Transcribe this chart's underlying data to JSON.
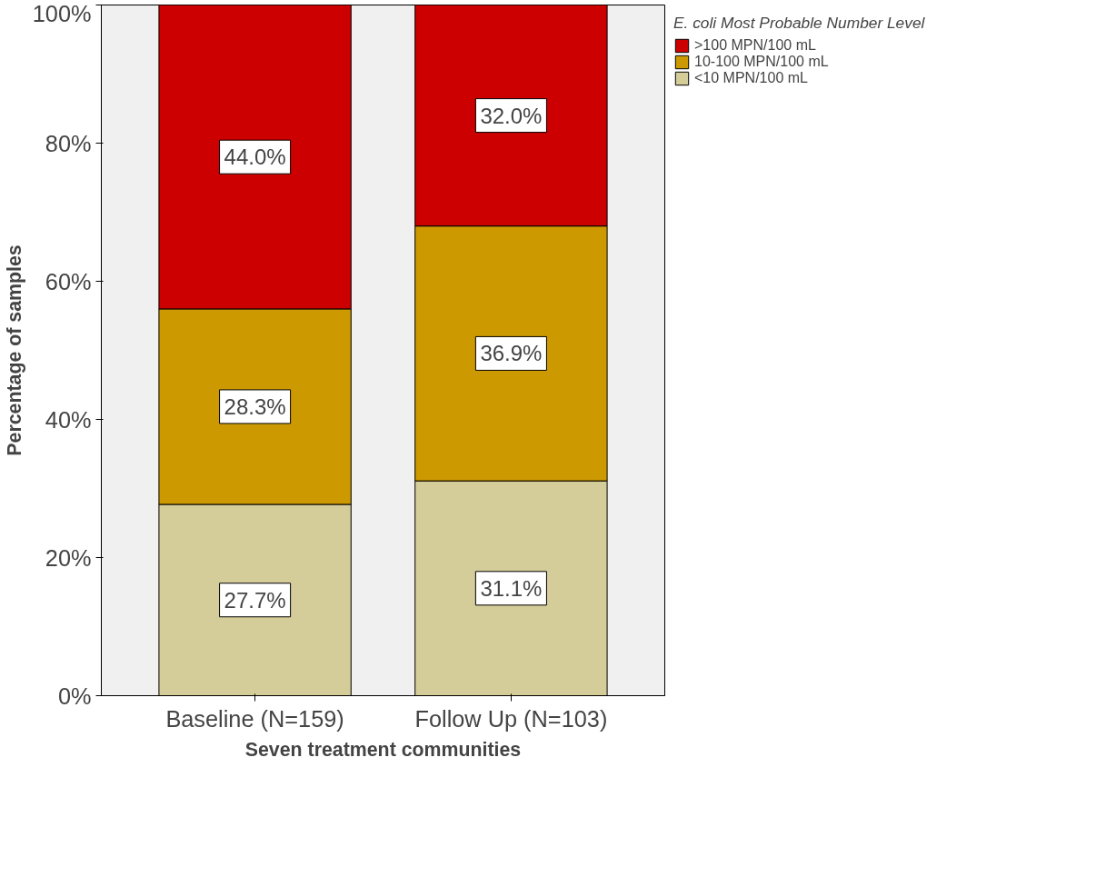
{
  "chart_data": {
    "type": "bar",
    "stacked": true,
    "xlabel": "Seven treatment communities",
    "ylabel": "Percentage of samples",
    "legend_title": "E. coli Most Probable Number Level",
    "categories": [
      "Baseline (N=159)",
      "Follow Up (N=103)"
    ],
    "series": [
      {
        "name": "<10 MPN/100 mL",
        "color": "#d4cc99",
        "values": [
          27.7,
          31.1
        ],
        "value_labels": [
          "27.7%",
          "31.1%"
        ]
      },
      {
        "name": "10-100 MPN/100 mL",
        "color": "#cc9900",
        "values": [
          28.3,
          36.9
        ],
        "value_labels": [
          "28.3%",
          "36.9%"
        ]
      },
      {
        "name": ">100 MPN/100 mL",
        "color": "#cc0000",
        "values": [
          44.0,
          32.0
        ],
        "value_labels": [
          "44.0%",
          "32.0%"
        ]
      }
    ],
    "ylim": [
      0,
      100
    ],
    "yticks": [
      {
        "value": 0,
        "label": "0%"
      },
      {
        "value": 20,
        "label": "20%"
      },
      {
        "value": 40,
        "label": "40%"
      },
      {
        "value": 60,
        "label": "60%"
      },
      {
        "value": 80,
        "label": "80%"
      },
      {
        "value": 100,
        "label": "100%"
      }
    ],
    "grid": false,
    "legend": "top right"
  }
}
